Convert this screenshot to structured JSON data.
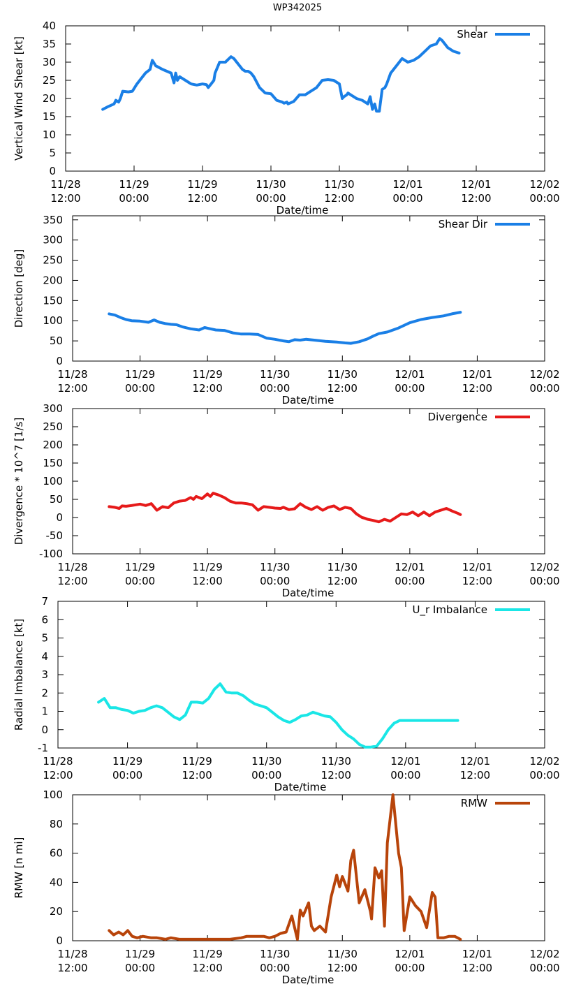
{
  "title": "WP342025",
  "x_tick_labels": [
    {
      "date": "11/28",
      "time": "12:00"
    },
    {
      "date": "11/29",
      "time": "00:00"
    },
    {
      "date": "11/29",
      "time": "12:00"
    },
    {
      "date": "11/30",
      "time": "00:00"
    },
    {
      "date": "11/30",
      "time": "12:00"
    },
    {
      "date": "12/01",
      "time": "00:00"
    },
    {
      "date": "12/01",
      "time": "12:00"
    },
    {
      "date": "12/02",
      "time": "00:00"
    }
  ],
  "chart_data": [
    {
      "type": "line",
      "title": "WP342025",
      "xlabel": "Date/time",
      "ylabel": "Vertical Wind Shear [kt]",
      "xlim": [
        0,
        84
      ],
      "ylim": [
        0,
        40
      ],
      "yticks": [
        0,
        5,
        10,
        15,
        20,
        25,
        30,
        35,
        40
      ],
      "series": [
        {
          "name": "Shear",
          "color": "#1a7fe6",
          "x": [
            6.5,
            7.5,
            8.5,
            8.8,
            9.3,
            9.6,
            10,
            11,
            11.7,
            12.5,
            13,
            14,
            14.8,
            15.2,
            15.4,
            15.8,
            17,
            18.5,
            19,
            19.3,
            19.6,
            20,
            20.5,
            21,
            22,
            23,
            24,
            24.7,
            25,
            25.5,
            26,
            26.2,
            27,
            28,
            29,
            29.5,
            30,
            31,
            31.5,
            32,
            32.5,
            33,
            34,
            35,
            36,
            37,
            38,
            38.3,
            38.8,
            39,
            40,
            41,
            42,
            43,
            44,
            45,
            46,
            47,
            48,
            48.5,
            48.8,
            49.3,
            49.5,
            50,
            51,
            52,
            53,
            53.4,
            53.8,
            54.2,
            54.5,
            55,
            55.5,
            56,
            56.3,
            57,
            58,
            59,
            60,
            61,
            62,
            63,
            64,
            65,
            65.6,
            66,
            66.5,
            67,
            68,
            69
          ],
          "y": [
            17,
            17.8,
            18.5,
            19.5,
            19,
            20,
            22,
            21.8,
            22,
            24,
            25,
            27,
            28,
            30.5,
            30,
            29,
            28,
            27,
            24.3,
            27,
            25,
            26,
            25.5,
            25,
            24,
            23.7,
            24,
            23.8,
            23,
            24,
            25,
            27,
            30,
            30,
            31.5,
            31,
            30,
            28,
            27.5,
            27.5,
            27,
            26,
            23,
            21.5,
            21.3,
            19.5,
            19,
            18.7,
            19,
            18.5,
            19.2,
            21,
            21,
            22,
            23,
            25,
            25.2,
            25,
            24,
            20,
            20.5,
            21,
            21.5,
            21,
            20,
            19.5,
            18.5,
            20.5,
            17,
            18.5,
            16.5,
            16.5,
            22.5,
            23,
            24,
            27,
            29,
            31,
            30,
            30.5,
            31.5,
            33,
            34.5,
            35,
            36.5,
            36,
            35,
            34,
            33,
            32.5
          ]
        }
      ]
    },
    {
      "type": "line",
      "xlabel": "Date/time",
      "ylabel": "Direction [deg]",
      "xlim": [
        0,
        84
      ],
      "ylim": [
        0,
        360
      ],
      "yticks": [
        0,
        50,
        100,
        150,
        200,
        250,
        300,
        350
      ],
      "series": [
        {
          "name": "Shear Dir",
          "color": "#1a7fe6",
          "x": [
            6.5,
            7.5,
            8.5,
            9.5,
            10.5,
            12,
            13.5,
            14.5,
            15.5,
            16.5,
            17.5,
            18.5,
            19.5,
            21,
            22.5,
            23.5,
            24.5,
            25.5,
            27,
            28.5,
            30,
            31.5,
            33,
            34.5,
            36,
            37.5,
            38.5,
            39.5,
            40.5,
            41.5,
            43,
            45,
            47,
            48.5,
            49.5,
            51,
            52.5,
            53.5,
            54.5,
            56,
            58,
            60,
            62,
            64,
            66,
            67.5,
            69
          ],
          "y": [
            117,
            114,
            108,
            103,
            100,
            99,
            96,
            102,
            96,
            93,
            91,
            90,
            85,
            80,
            77,
            83,
            80,
            77,
            76,
            70,
            67,
            67,
            66,
            57,
            54,
            50,
            48,
            53,
            52,
            54,
            52,
            49,
            47,
            45,
            44,
            48,
            55,
            62,
            68,
            72,
            82,
            95,
            103,
            108,
            112,
            117,
            121
          ]
        }
      ]
    },
    {
      "type": "line",
      "xlabel": "Date/time",
      "ylabel": "Divergence * 10^7 [1/s]",
      "xlim": [
        0,
        84
      ],
      "ylim": [
        -100,
        300
      ],
      "yticks": [
        -100,
        -50,
        0,
        50,
        100,
        150,
        200,
        250,
        300
      ],
      "series": [
        {
          "name": "Divergence",
          "color": "#e61a1a",
          "x": [
            6.5,
            7.5,
            8.3,
            8.8,
            9.5,
            10.5,
            12,
            13,
            14,
            15,
            16,
            17,
            18,
            19,
            20,
            21,
            21.5,
            22,
            23,
            24,
            24.5,
            25,
            26,
            27,
            28,
            29,
            30,
            31,
            32,
            33,
            34,
            35,
            36,
            37,
            37.5,
            38.5,
            39.5,
            40.5,
            41.5,
            42.5,
            43.5,
            44.5,
            45.5,
            46.5,
            47.5,
            48.5,
            49.5,
            50.5,
            51.5,
            52,
            52.5,
            53.5,
            54.5,
            55.5,
            56.5,
            57.5,
            58.5,
            59.5,
            60.5,
            61.5,
            62.5,
            63.5,
            64.5,
            65.5,
            66.5,
            67.5,
            68.5,
            69
          ],
          "y": [
            30,
            28,
            25,
            32,
            31,
            33,
            37,
            33,
            38,
            20,
            30,
            27,
            40,
            45,
            47,
            55,
            50,
            58,
            52,
            65,
            58,
            67,
            62,
            55,
            45,
            40,
            40,
            38,
            35,
            20,
            30,
            28,
            26,
            25,
            28,
            22,
            24,
            38,
            28,
            22,
            30,
            20,
            28,
            32,
            22,
            28,
            25,
            10,
            0,
            -2,
            -5,
            -8,
            -12,
            -5,
            -10,
            0,
            10,
            8,
            15,
            5,
            15,
            5,
            15,
            20,
            25,
            18,
            12,
            8
          ]
        }
      ]
    },
    {
      "type": "line",
      "xlabel": "Date/time",
      "ylabel": "Radial Imbalance [kt]",
      "xlim": [
        0,
        84
      ],
      "ylim": [
        -1,
        7
      ],
      "yticks": [
        -1,
        0,
        1,
        2,
        3,
        4,
        5,
        6,
        7
      ],
      "series": [
        {
          "name": "U_r Imbalance",
          "color": "#1ae6e6",
          "x": [
            7,
            8,
            9,
            10,
            11,
            12,
            13,
            14,
            15,
            16,
            17,
            18,
            19,
            20,
            21,
            22,
            23,
            24,
            25,
            26,
            27,
            28,
            29,
            30,
            31,
            32,
            33,
            34,
            35,
            36,
            37,
            38,
            39,
            40,
            41,
            42,
            43,
            44,
            45,
            46,
            47,
            48,
            49,
            50,
            51,
            52,
            53,
            54,
            55,
            56,
            57,
            58,
            59,
            60,
            61,
            62,
            63,
            64,
            65,
            66,
            67,
            68,
            69
          ],
          "y": [
            1.5,
            1.7,
            1.2,
            1.2,
            1.1,
            1.05,
            0.9,
            1,
            1.05,
            1.2,
            1.3,
            1.2,
            0.95,
            0.7,
            0.55,
            0.8,
            1.5,
            1.5,
            1.45,
            1.7,
            2.2,
            2.5,
            2.05,
            2,
            2,
            1.85,
            1.6,
            1.4,
            1.3,
            1.2,
            0.95,
            0.7,
            0.5,
            0.4,
            0.55,
            0.75,
            0.8,
            0.95,
            0.85,
            0.75,
            0.7,
            0.4,
            0,
            -0.3,
            -0.5,
            -0.8,
            -0.95,
            -0.95,
            -0.9,
            -0.5,
            0,
            0.35,
            0.5,
            0.5,
            0.5,
            0.5,
            0.5,
            0.5,
            0.5,
            0.5,
            0.5,
            0.5,
            0.5
          ]
        }
      ]
    },
    {
      "type": "line",
      "xlabel": "Date/time",
      "ylabel": "RMW [n mi]",
      "xlim": [
        0,
        84
      ],
      "ylim": [
        0,
        100
      ],
      "yticks": [
        0,
        20,
        40,
        60,
        80,
        100
      ],
      "series": [
        {
          "name": "RMW",
          "color": "#b8440a",
          "x": [
            6.5,
            7.3,
            8.2,
            9,
            9.8,
            10.6,
            11.5,
            12.5,
            14,
            15,
            16.5,
            17.5,
            19,
            21,
            23,
            25,
            27,
            28,
            30,
            31,
            33,
            34,
            35,
            36,
            36.5,
            37,
            38,
            39,
            40,
            40.5,
            41,
            42,
            42.5,
            43,
            44,
            45,
            46,
            47,
            47.5,
            48,
            49,
            49.5,
            50,
            51,
            52,
            53,
            53.2,
            53.8,
            54.5,
            55,
            55.5,
            56,
            57,
            58,
            58.5,
            59,
            60,
            61,
            62,
            63,
            64,
            64.5,
            65,
            66,
            67,
            67.5,
            68,
            69
          ],
          "y": [
            7,
            4,
            6,
            4,
            7,
            3,
            2,
            3,
            2,
            2,
            1,
            2,
            1,
            1,
            1,
            1,
            1,
            1,
            2,
            3,
            3,
            3,
            2,
            3,
            4,
            5,
            6,
            17,
            1,
            21,
            17,
            26,
            10,
            7,
            10,
            6,
            30,
            45,
            37,
            44,
            34,
            55,
            62,
            26,
            35,
            20,
            15,
            50,
            43,
            48,
            10,
            67,
            100,
            60,
            50,
            7,
            30,
            24,
            20,
            9,
            33,
            30,
            2,
            2,
            3,
            3,
            3,
            1
          ]
        }
      ]
    }
  ]
}
